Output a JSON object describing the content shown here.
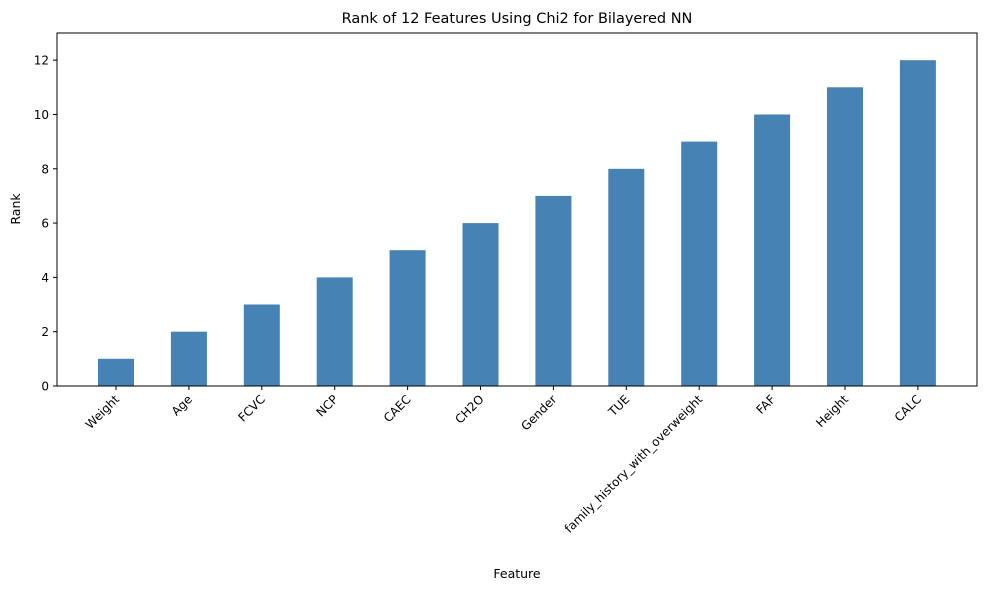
{
  "chart_data": {
    "type": "bar",
    "title": "Rank of 12 Features Using Chi2 for Bilayered NN",
    "xlabel": "Feature",
    "ylabel": "Rank",
    "categories": [
      "Weight",
      "Age",
      "FCVC",
      "NCP",
      "CAEC",
      "CH2O",
      "Gender",
      "TUE",
      "family_history_with_overweight",
      "FAF",
      "Height",
      "CALC"
    ],
    "values": [
      1,
      2,
      3,
      4,
      5,
      6,
      7,
      8,
      9,
      10,
      11,
      12
    ],
    "ylim": [
      0,
      13
    ],
    "yticks": [
      0,
      2,
      4,
      6,
      8,
      10,
      12
    ],
    "bar_color": "#4682b4",
    "grid": false,
    "legend": "none"
  }
}
